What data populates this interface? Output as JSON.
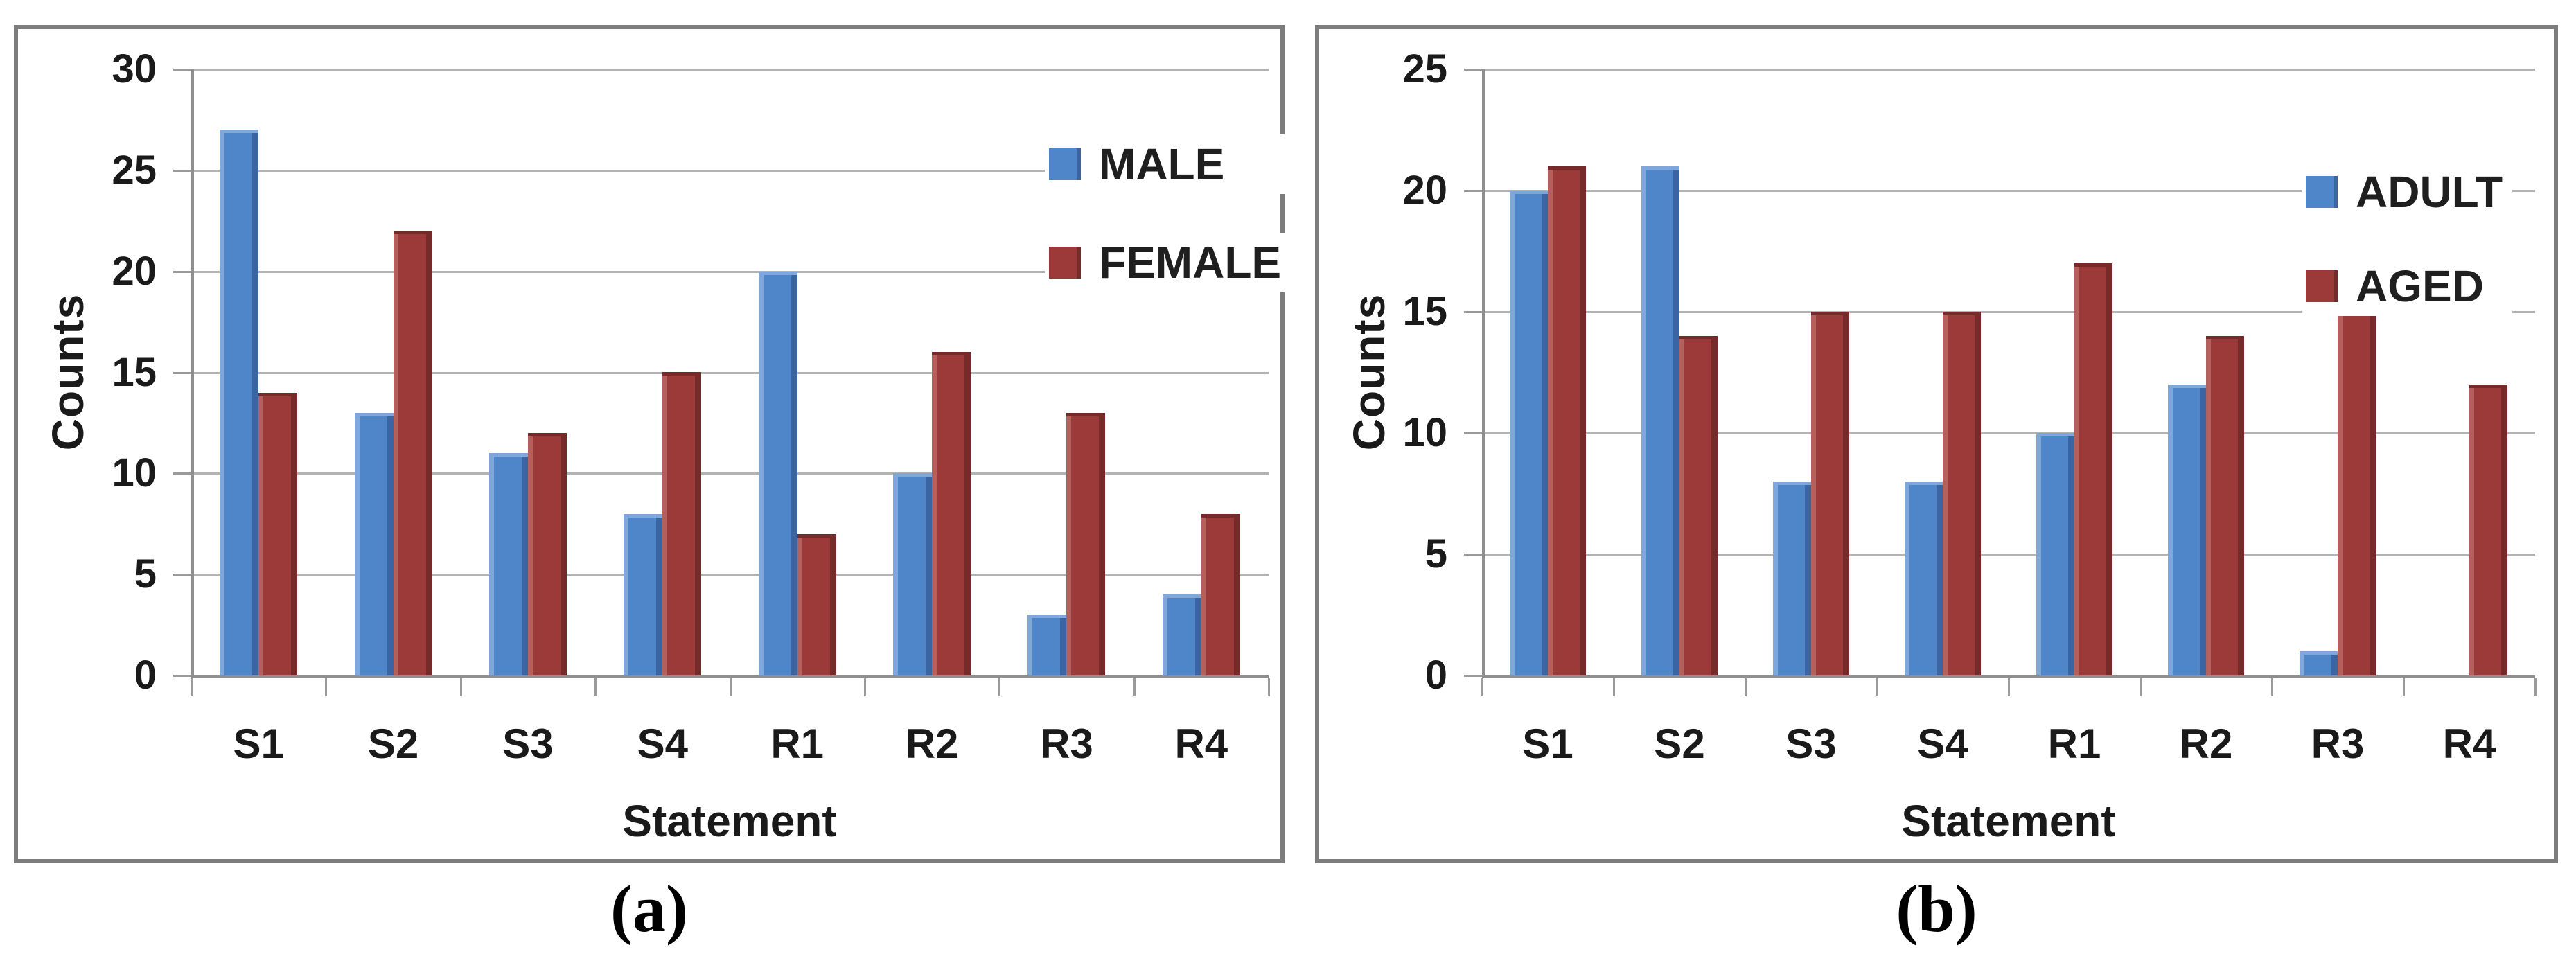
{
  "style": {
    "background": "#ffffff",
    "gridline_color": "#b3b3b3",
    "axis_color": "#8f8f8f",
    "panel_border_color": "#7d7d7d",
    "text_color": "#1a1a1a"
  },
  "chart_data": [
    {
      "id": "a",
      "type": "bar",
      "caption": "(a)",
      "ylabel": "Counts",
      "xlabel": "Statement",
      "ylim": [
        0,
        30
      ],
      "yticks": [
        0,
        5,
        10,
        15,
        20,
        25,
        30
      ],
      "grid": true,
      "legend_position": "top-right",
      "categories": [
        "S1",
        "S2",
        "S3",
        "S4",
        "R1",
        "R2",
        "R3",
        "R4"
      ],
      "series": [
        {
          "name": "MALE",
          "color": "#4f86c9",
          "light": "#7fa7dc",
          "dark": "#3a65a2",
          "cap": "#7fa7dc",
          "values": [
            27,
            13,
            11,
            8,
            20,
            10,
            3,
            4
          ]
        },
        {
          "name": "FEMALE",
          "color": "#9b3a38",
          "light": "#b4605d",
          "dark": "#762b2a",
          "cap": "#762b2a",
          "values": [
            14,
            22,
            12,
            15,
            7,
            16,
            13,
            8
          ]
        }
      ]
    },
    {
      "id": "b",
      "type": "bar",
      "caption": "(b)",
      "ylabel": "Counts",
      "xlabel": "Statement",
      "ylim": [
        0,
        25
      ],
      "yticks": [
        0,
        5,
        10,
        15,
        20,
        25
      ],
      "grid": true,
      "legend_position": "top-right",
      "categories": [
        "S1",
        "S2",
        "S3",
        "S4",
        "R1",
        "R2",
        "R3",
        "R4"
      ],
      "series": [
        {
          "name": "ADULT",
          "color": "#4f86c9",
          "light": "#7fa7dc",
          "dark": "#3a65a2",
          "cap": "#7fa7dc",
          "values": [
            20,
            21,
            8,
            8,
            10,
            12,
            1,
            0
          ]
        },
        {
          "name": "AGED",
          "color": "#9b3a38",
          "light": "#b4605d",
          "dark": "#762b2a",
          "cap": "#762b2a",
          "values": [
            21,
            14,
            15,
            15,
            17,
            14,
            15,
            12
          ]
        }
      ]
    }
  ]
}
